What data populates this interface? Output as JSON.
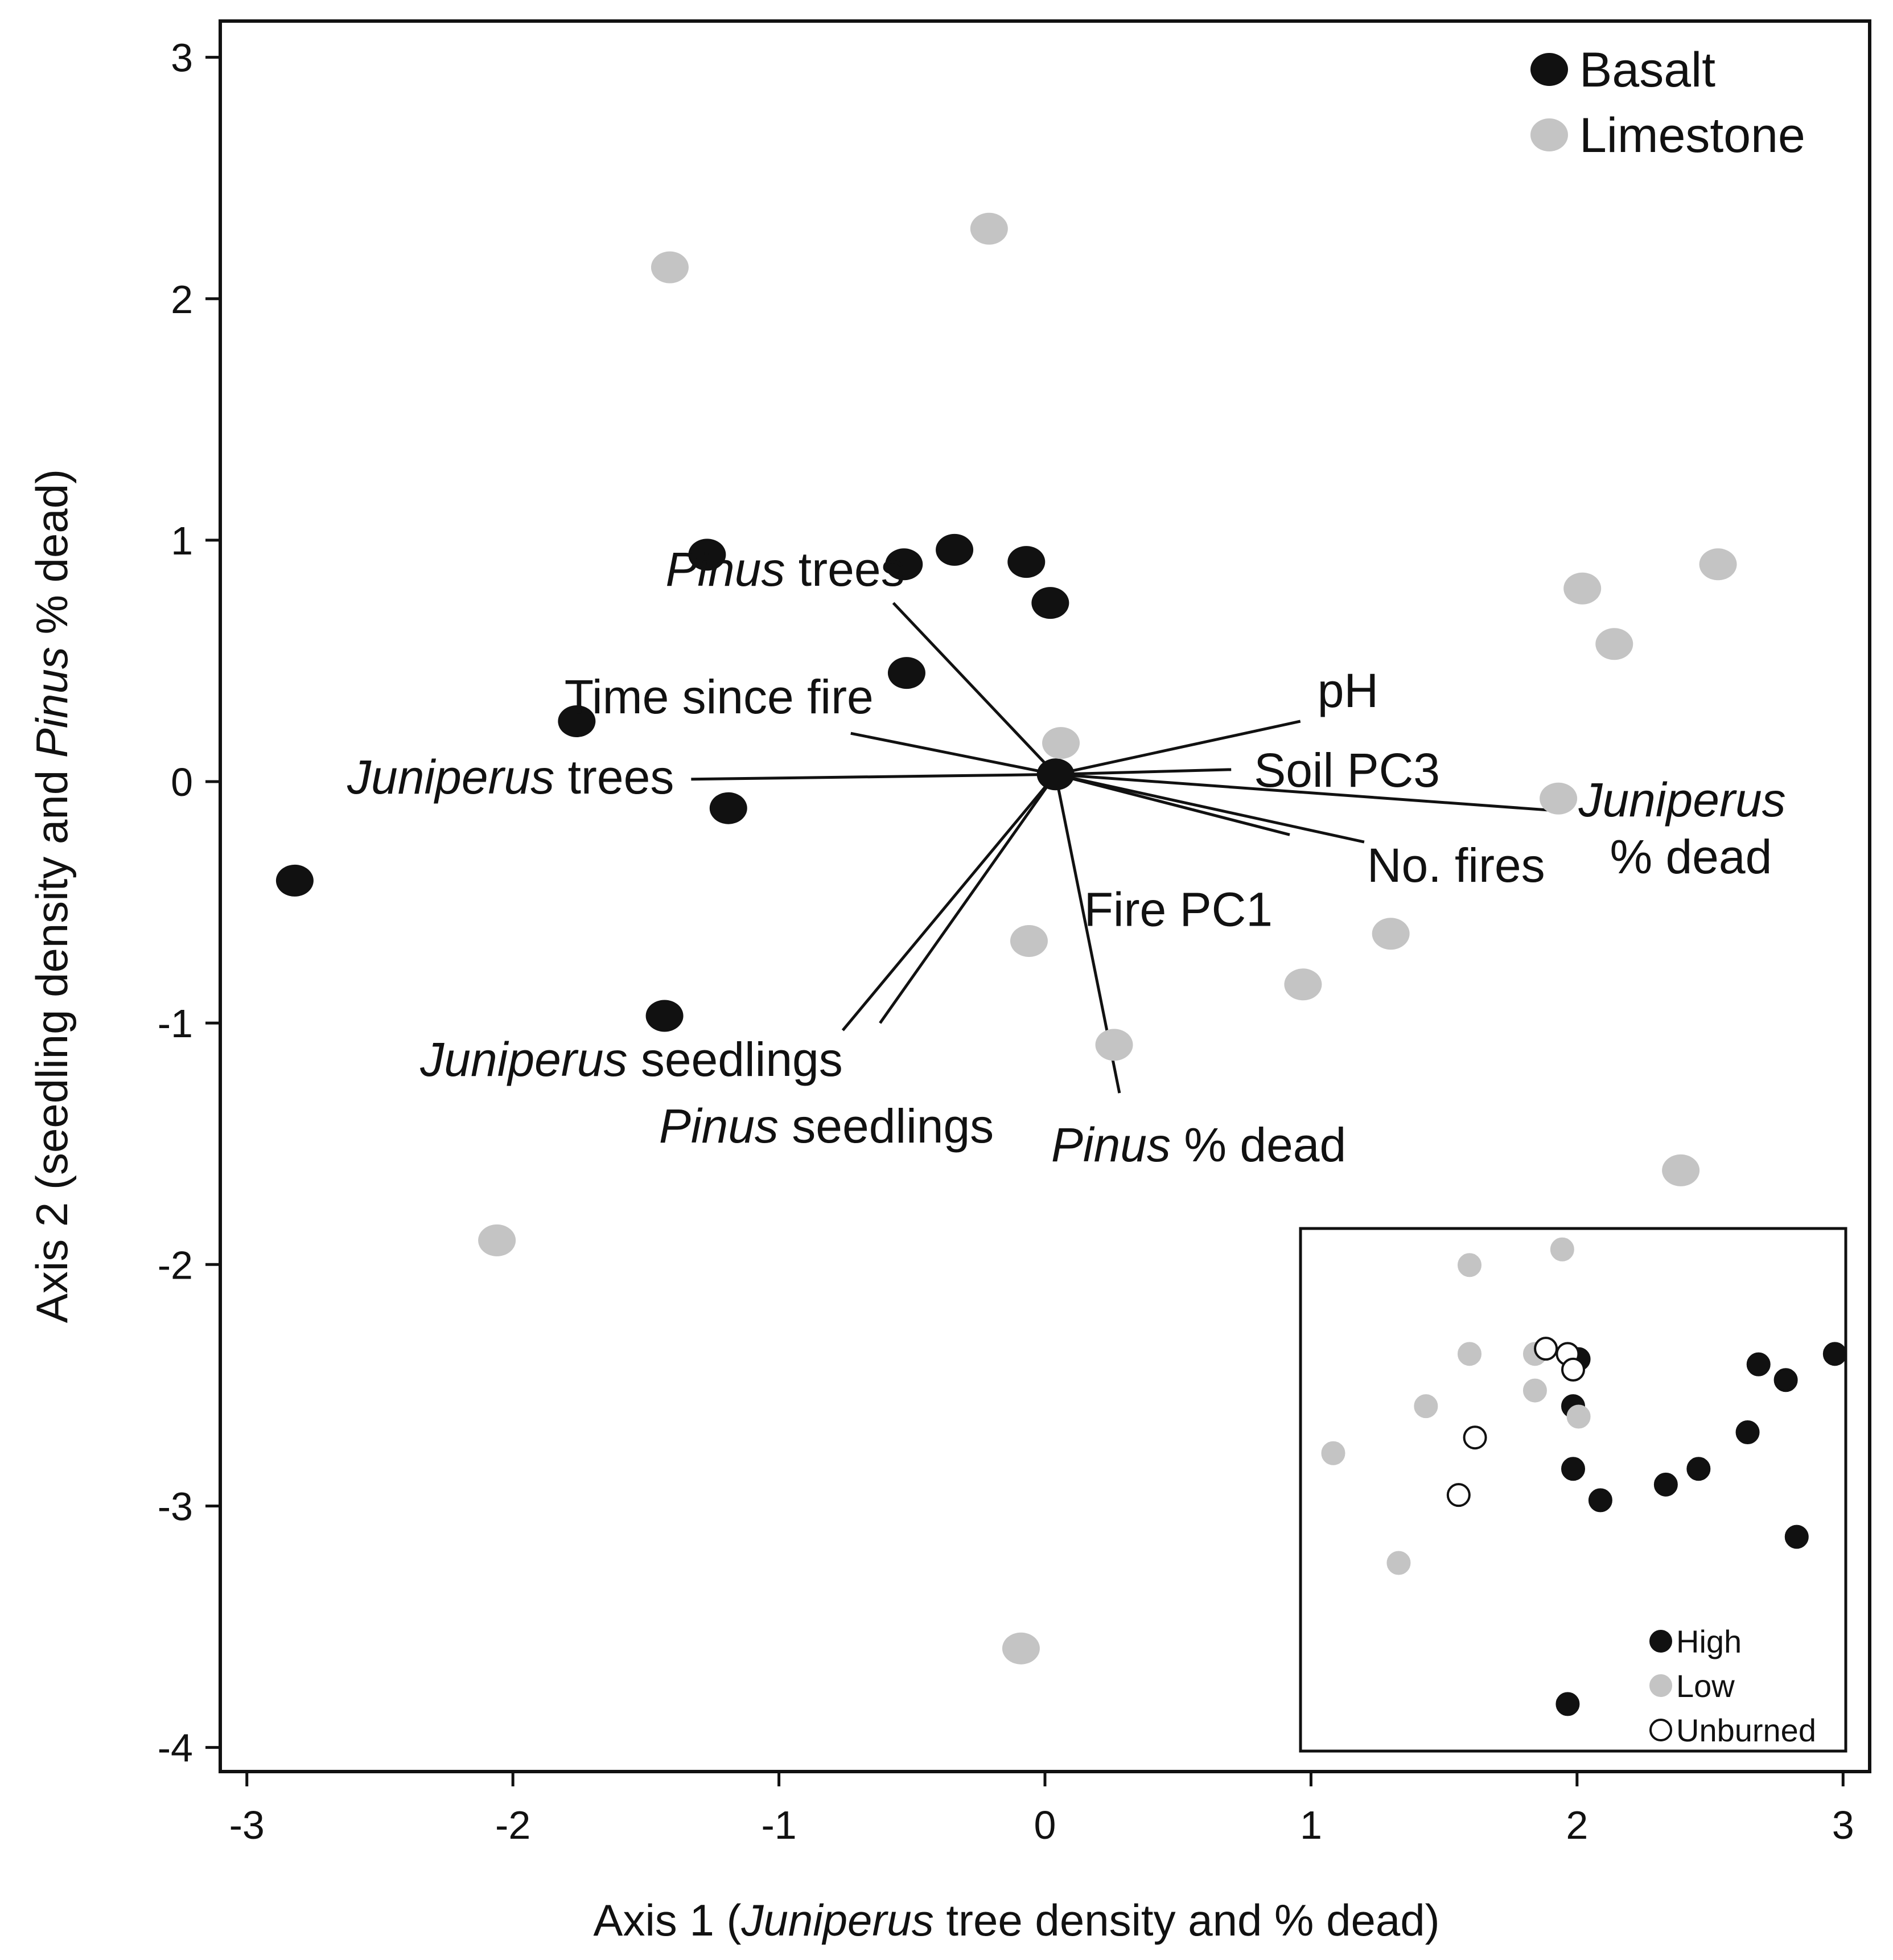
{
  "chart_data": {
    "type": "scatter",
    "title": "",
    "xlabel_parts": [
      {
        "t": "Axis 1 (",
        "i": false
      },
      {
        "t": "Juniperus",
        "i": true
      },
      {
        "t": "  tree density and % dead)",
        "i": false
      }
    ],
    "ylabel_parts": [
      {
        "t": "Axis 2 (seedling density and ",
        "i": false
      },
      {
        "t": "Pinus",
        "i": true
      },
      {
        "t": " % dead)",
        "i": false
      }
    ],
    "xlim": [
      -3.1,
      3.1
    ],
    "ylim": [
      -4.1,
      3.15
    ],
    "xticks": [
      -3,
      -2,
      -1,
      0,
      1,
      2,
      3
    ],
    "yticks": [
      -4,
      -3,
      -2,
      -1,
      0,
      1,
      2,
      3
    ],
    "legend": {
      "position": "top-right",
      "entries": [
        {
          "label": "Basalt",
          "color": "#111111"
        },
        {
          "label": "Limestone",
          "color": "#c4c4c4"
        }
      ]
    },
    "series": [
      {
        "name": "Basalt",
        "color": "#111111",
        "points": [
          {
            "x": -2.82,
            "y": -0.41
          },
          {
            "x": -1.76,
            "y": 0.25
          },
          {
            "x": -1.43,
            "y": -0.97
          },
          {
            "x": -1.27,
            "y": 0.94
          },
          {
            "x": -1.19,
            "y": -0.11
          },
          {
            "x": -0.53,
            "y": 0.9
          },
          {
            "x": -0.52,
            "y": 0.45
          },
          {
            "x": -0.34,
            "y": 0.96
          },
          {
            "x": -0.07,
            "y": 0.91
          },
          {
            "x": 0.02,
            "y": 0.74
          },
          {
            "x": 0.04,
            "y": 0.03
          }
        ]
      },
      {
        "name": "Limestone",
        "color": "#c4c4c4",
        "points": [
          {
            "x": -1.41,
            "y": 2.13
          },
          {
            "x": -0.21,
            "y": 2.29
          },
          {
            "x": 0.06,
            "y": 0.16
          },
          {
            "x": -0.06,
            "y": -0.66
          },
          {
            "x": 0.26,
            "y": -1.09
          },
          {
            "x": 0.97,
            "y": -0.84
          },
          {
            "x": 1.3,
            "y": -0.63
          },
          {
            "x": 1.93,
            "y": -0.07
          },
          {
            "x": 2.02,
            "y": 0.8
          },
          {
            "x": 2.14,
            "y": 0.57
          },
          {
            "x": 2.53,
            "y": 0.9
          },
          {
            "x": 2.39,
            "y": -1.61
          },
          {
            "x": -2.06,
            "y": -1.9
          },
          {
            "x": -0.09,
            "y": -3.59
          }
        ]
      }
    ],
    "vectors": [
      {
        "name": "Pinus trees",
        "x": -0.57,
        "y": 0.74,
        "parts": [
          {
            "t": "Pinus",
            "i": true
          },
          {
            "t": " trees",
            "i": false
          }
        ]
      },
      {
        "name": "Time since fire",
        "x": -0.73,
        "y": 0.2,
        "parts": [
          {
            "t": "Time since fire",
            "i": false
          }
        ]
      },
      {
        "name": "Juniperus trees",
        "x": -1.33,
        "y": 0.01,
        "parts": [
          {
            "t": "Juniperus",
            "i": true
          },
          {
            "t": " trees",
            "i": false
          }
        ]
      },
      {
        "name": "pH",
        "x": 0.96,
        "y": 0.25,
        "parts": [
          {
            "t": "pH",
            "i": false
          }
        ]
      },
      {
        "name": "Soil PC3",
        "x": 0.7,
        "y": 0.05,
        "parts": [
          {
            "t": "Soil PC3",
            "i": false
          }
        ]
      },
      {
        "name": "Juniperus % dead",
        "x": 1.92,
        "y": -0.12,
        "parts": [
          {
            "t": "Juniperus",
            "i": true
          }
        ],
        "line2": [
          {
            "t": "% dead",
            "i": false
          }
        ]
      },
      {
        "name": "No. fires",
        "x": 1.2,
        "y": -0.25,
        "parts": [
          {
            "t": "No. fires",
            "i": false
          }
        ]
      },
      {
        "name": "Fire PC1",
        "x": 0.92,
        "y": -0.22,
        "parts": [
          {
            "t": "Fire PC1",
            "i": false
          }
        ]
      },
      {
        "name": "Pinus % dead",
        "x": 0.28,
        "y": -1.29,
        "parts": [
          {
            "t": "Pinus",
            "i": true
          },
          {
            "t": " % dead",
            "i": false
          }
        ]
      },
      {
        "name": "Juniperus seedlings",
        "x": -0.76,
        "y": -1.03,
        "parts": [
          {
            "t": "Juniperus",
            "i": true
          },
          {
            "t": "  seedlings",
            "i": false
          }
        ]
      },
      {
        "name": "Pinus seedlings",
        "x": -0.62,
        "y": -1.0,
        "parts": [
          {
            "t": "Pinus",
            "i": true
          },
          {
            "t": " seedlings",
            "i": false
          }
        ]
      }
    ],
    "inset": {
      "legend": [
        {
          "label": "High",
          "fill": "#111111",
          "stroke": "#111111"
        },
        {
          "label": "Low",
          "fill": "#c4c4c4",
          "stroke": "#c4c4c4"
        },
        {
          "label": "Unburned",
          "fill": "#ffffff",
          "stroke": "#111111"
        }
      ],
      "points": [
        {
          "g": "High",
          "x": 0.51,
          "y": 0.25
        },
        {
          "g": "High",
          "x": 0.84,
          "y": 0.26
        },
        {
          "g": "High",
          "x": 0.89,
          "y": 0.29
        },
        {
          "g": "High",
          "x": 0.98,
          "y": 0.24
        },
        {
          "g": "High",
          "x": 0.5,
          "y": 0.34
        },
        {
          "g": "High",
          "x": 0.82,
          "y": 0.39
        },
        {
          "g": "High",
          "x": 0.5,
          "y": 0.46
        },
        {
          "g": "High",
          "x": 0.55,
          "y": 0.52
        },
        {
          "g": "High",
          "x": 0.67,
          "y": 0.49
        },
        {
          "g": "High",
          "x": 0.73,
          "y": 0.46
        },
        {
          "g": "High",
          "x": 0.91,
          "y": 0.59
        },
        {
          "g": "High",
          "x": 0.49,
          "y": 0.91
        },
        {
          "g": "Low",
          "x": 0.31,
          "y": 0.07
        },
        {
          "g": "Low",
          "x": 0.48,
          "y": 0.04
        },
        {
          "g": "Low",
          "x": 0.31,
          "y": 0.24
        },
        {
          "g": "Low",
          "x": 0.43,
          "y": 0.24
        },
        {
          "g": "Low",
          "x": 0.43,
          "y": 0.31
        },
        {
          "g": "Low",
          "x": 0.51,
          "y": 0.36
        },
        {
          "g": "Low",
          "x": 0.23,
          "y": 0.34
        },
        {
          "g": "Low",
          "x": 0.06,
          "y": 0.43
        },
        {
          "g": "Low",
          "x": 0.18,
          "y": 0.64
        },
        {
          "g": "Unburned",
          "x": 0.45,
          "y": 0.23
        },
        {
          "g": "Unburned",
          "x": 0.49,
          "y": 0.24
        },
        {
          "g": "Unburned",
          "x": 0.5,
          "y": 0.27
        },
        {
          "g": "Unburned",
          "x": 0.32,
          "y": 0.4
        },
        {
          "g": "Unburned",
          "x": 0.29,
          "y": 0.51
        }
      ]
    }
  }
}
